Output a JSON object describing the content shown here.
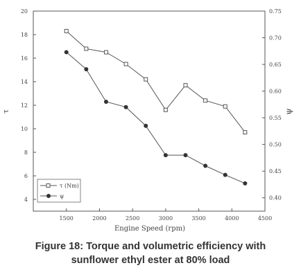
{
  "figure_caption": {
    "line1": "Figure 18: Torque and volumetric efficiency with",
    "line2": "sunflower ethyl ester at 80% load"
  },
  "chart_data": {
    "type": "line",
    "xlabel": "Engine Speed (rpm)",
    "ylabel_left": "τ",
    "ylabel_right": "ψ",
    "xlim": [
      1000,
      4500
    ],
    "ylim_left": [
      3,
      20
    ],
    "ylim_right": [
      0.375,
      0.75
    ],
    "x_ticks": [
      "1500",
      "2000",
      "2500",
      "3000",
      "3500",
      "4000",
      "4500"
    ],
    "y_left_ticks": [
      "4",
      "6",
      "8",
      "10",
      "12",
      "14",
      "16",
      "18",
      "20"
    ],
    "y_right_ticks": [
      "0.40",
      "0.45",
      "0.50",
      "0.55",
      "0.60",
      "0.65",
      "0.70",
      "0.75"
    ],
    "legend_position": "bottom-left",
    "grid": false,
    "x": [
      1500,
      1800,
      2100,
      2400,
      2700,
      3000,
      3300,
      3600,
      3900,
      4200
    ],
    "series": [
      {
        "name": "τ (Nm)",
        "axis": "left",
        "marker": "open-square",
        "values": [
          18.3,
          16.8,
          16.5,
          15.5,
          14.2,
          11.6,
          13.7,
          12.4,
          11.9,
          9.7
        ]
      },
      {
        "name": "ψ",
        "axis": "right",
        "marker": "filled-circle",
        "values": [
          0.673,
          0.641,
          0.58,
          0.57,
          0.535,
          0.48,
          0.48,
          0.46,
          0.443,
          0.427
        ]
      }
    ]
  }
}
